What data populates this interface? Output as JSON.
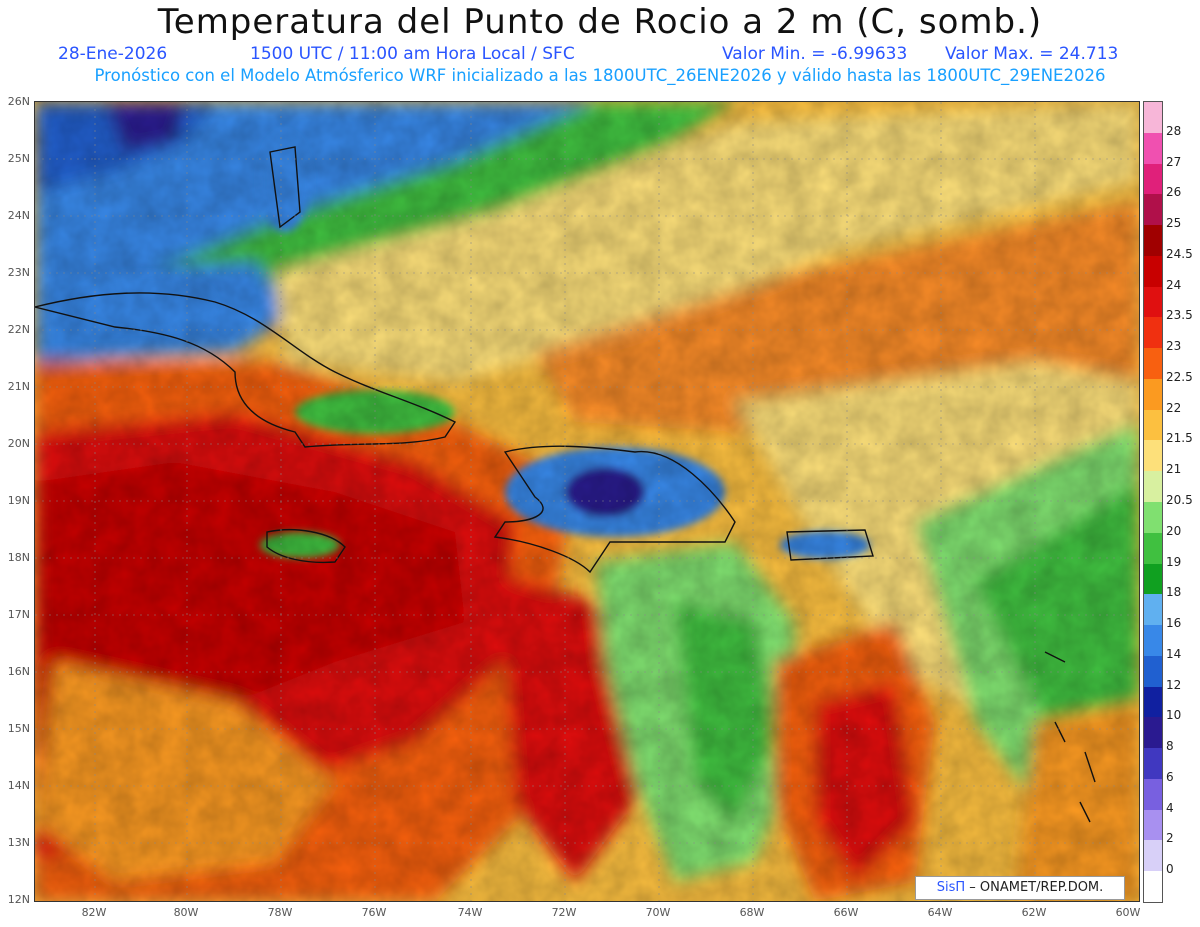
{
  "title": "Temperatura del Punto de Rocio a 2 m (C, somb.)",
  "subtitle": {
    "date": "28-Ene-2026",
    "time": "1500 UTC / 11:00 am Hora Local / SFC",
    "min": "Valor Min. = -6.99633",
    "max": "Valor Max. = 24.713",
    "model": "Pronóstico con el Modelo Atmósferico WRF inicializado a las 1800UTC_26ENE2026 y válido hasta las  1800UTC_29ENE2026"
  },
  "lat_labels": [
    "26N",
    "25N",
    "24N",
    "23N",
    "22N",
    "21N",
    "20N",
    "19N",
    "18N",
    "17N",
    "16N",
    "15N",
    "14N",
    "13N",
    "12N"
  ],
  "lon_labels": [
    "82W",
    "80W",
    "78W",
    "76W",
    "74W",
    "72W",
    "70W",
    "68W",
    "66W",
    "64W",
    "62W",
    "60W"
  ],
  "colorbar": {
    "levels": [
      "28",
      "27",
      "26",
      "25",
      "24.5",
      "24",
      "23.5",
      "23",
      "22.5",
      "22",
      "21.5",
      "21",
      "20.5",
      "20",
      "19",
      "18",
      "16",
      "14",
      "12",
      "10",
      "8",
      "6",
      "4",
      "2",
      "0"
    ],
    "colors": [
      "#f7b6d8",
      "#f050b0",
      "#e0207a",
      "#b0104a",
      "#a00000",
      "#c80000",
      "#e01010",
      "#f03010",
      "#f86010",
      "#fb9a20",
      "#fcc040",
      "#fde07a",
      "#d8f0a0",
      "#80e070",
      "#40c040",
      "#10a020",
      "#60b0f0",
      "#3888e8",
      "#2060d0",
      "#1020a0",
      "#2a1a90",
      "#4038c0",
      "#7860e0",
      "#a890f0",
      "#d8d0f8",
      "#ffffff"
    ]
  },
  "credit": {
    "logo": "SisΠ",
    "text": "– ONAMET/REP.DOM."
  }
}
